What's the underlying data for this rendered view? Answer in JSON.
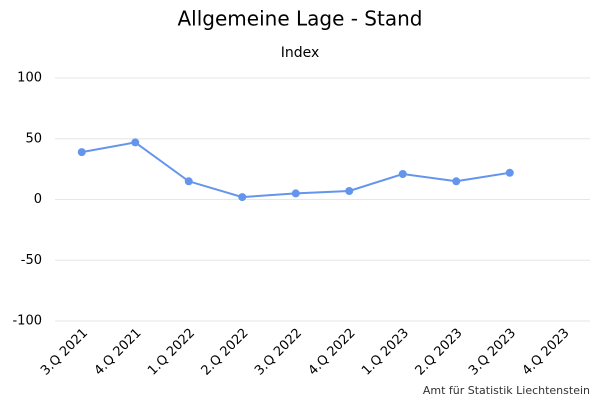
{
  "chart_data": {
    "type": "line",
    "title": "Allgemeine Lage - Stand",
    "subtitle": "Index",
    "categories": [
      "3.Q 2021",
      "4.Q 2021",
      "1.Q 2022",
      "2.Q 2022",
      "3.Q 2022",
      "4.Q 2022",
      "1.Q 2023",
      "2.Q 2023",
      "3.Q 2023",
      "4.Q 2023"
    ],
    "series": [
      {
        "name": "Index",
        "color": "#6495ed",
        "values": [
          39,
          47,
          15,
          2,
          5,
          7,
          21,
          15,
          22,
          null
        ]
      }
    ],
    "ylim": [
      -100,
      100
    ],
    "yticks": [
      -100,
      -50,
      0,
      50,
      100
    ],
    "grid": true,
    "source": "Amt für Statistik Liechtenstein"
  }
}
